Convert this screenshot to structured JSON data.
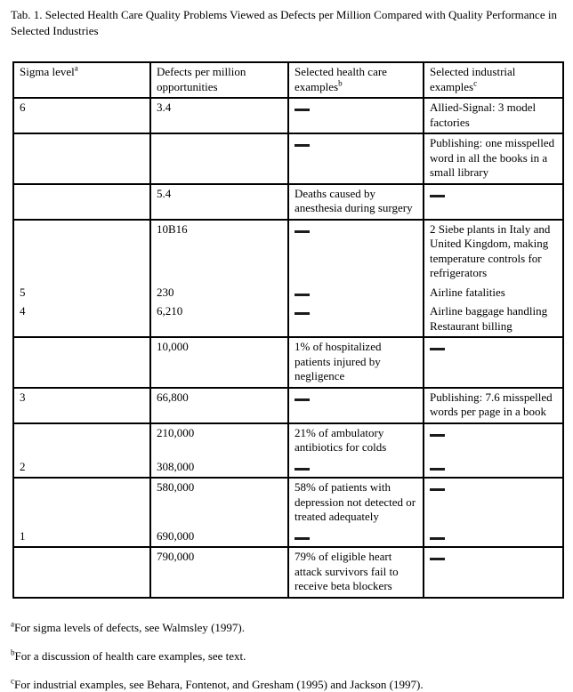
{
  "caption": "Tab. 1. Selected Health Care Quality Problems Viewed as Defects per Million Compared with Quality Performance in Selected Industries",
  "table": {
    "dash_symbol": "—",
    "header": [
      {
        "text": "Sigma level",
        "sup": "a"
      },
      {
        "text": "Defects per million opportunities"
      },
      {
        "text": "Selected health care examples",
        "sup": "b"
      },
      {
        "text": "Selected industrial examples",
        "sup": "c"
      }
    ],
    "rows": [
      {
        "cells": [
          "6",
          "3.4",
          "—",
          "Allied-Signal: 3 model factories"
        ],
        "rule_below": true
      },
      {
        "cells": [
          "",
          "",
          "—",
          "Publishing: one misspelled word in all the books in a small library"
        ],
        "rule_below": true
      },
      {
        "cells": [
          "",
          "5.4",
          "Deaths caused by anesthesia during surgery",
          "—"
        ],
        "rule_below": true
      },
      {
        "cells": [
          "",
          "10B16",
          "—",
          "2 Siebe plants in Italy and United Kingdom, making temperature controls for refrigerators"
        ],
        "rule_below": false
      },
      {
        "cells": [
          "5",
          "230",
          "—",
          "Airline fatalities"
        ],
        "rule_below": false
      },
      {
        "cells": [
          "4",
          "6,210",
          "—",
          "Airline baggage handling Restaurant billing"
        ],
        "rule_below": true
      },
      {
        "cells": [
          "",
          "10,000",
          "1% of hospitalized patients injured by negligence",
          "—"
        ],
        "rule_below": true
      },
      {
        "cells": [
          "3",
          "66,800",
          "—",
          "Publishing: 7.6 misspelled words per page in a book"
        ],
        "rule_below": true
      },
      {
        "cells": [
          "",
          "210,000",
          "21% of ambulatory antibiotics for colds",
          "—"
        ],
        "rule_below": false
      },
      {
        "cells": [
          "2",
          "308,000",
          "—",
          "—"
        ],
        "rule_below": true
      },
      {
        "cells": [
          "",
          "580,000",
          "58% of patients with depression not detected or treated adequately",
          "—"
        ],
        "rule_below": false
      },
      {
        "cells": [
          "1",
          "690,000",
          "—",
          "—"
        ],
        "rule_below": true
      },
      {
        "cells": [
          "",
          "790,000",
          "79% of eligible heart attack survivors fail to receive beta blockers",
          "—"
        ],
        "rule_below": true
      }
    ]
  },
  "footnotes": [
    {
      "sup": "a",
      "text": "For sigma levels of defects, see Walmsley (1997)."
    },
    {
      "sup": "b",
      "text": "For a discussion of health care examples, see text."
    },
    {
      "sup": "c",
      "text": "For industrial examples, see Behara, Fontenot, and Gresham (1995) and Jackson (1997)."
    }
  ]
}
